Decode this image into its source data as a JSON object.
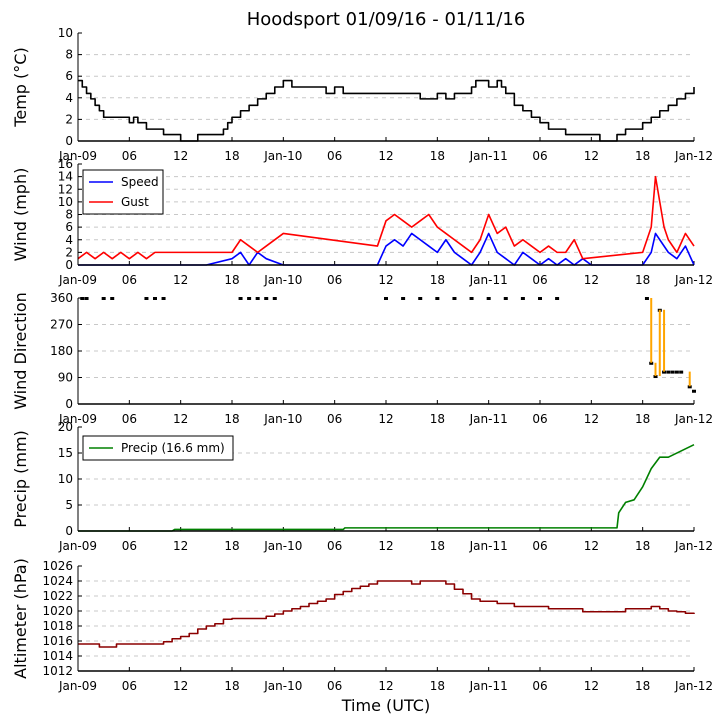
{
  "figure": {
    "title": "Hoodsport 01/09/16 - 01/11/16",
    "xlabel": "Time (UTC)",
    "x_tick_labels": [
      "Jan-09",
      "06",
      "12",
      "18",
      "Jan-10",
      "06",
      "12",
      "18",
      "Jan-11",
      "06",
      "12",
      "18",
      "Jan-12"
    ]
  },
  "chart_data": [
    {
      "type": "line",
      "name": "temperature",
      "ylabel": "Temp (°C)",
      "ylim": [
        0,
        10
      ],
      "yticks": [
        0,
        2,
        4,
        6,
        8,
        10
      ],
      "xlim": [
        0,
        72
      ],
      "grid": "horizontal dashed",
      "series": [
        {
          "name": "Temp",
          "color": "#000000",
          "step": true,
          "x": [
            0,
            0.5,
            1,
            1.5,
            2,
            2.5,
            3,
            4,
            5,
            6,
            6.5,
            7,
            8,
            9,
            10,
            11,
            12,
            13,
            14,
            15,
            16,
            17,
            17.5,
            18,
            19,
            20,
            21,
            22,
            23,
            24,
            25,
            26,
            27,
            28,
            29,
            30,
            31,
            32,
            33,
            34,
            35,
            36,
            37,
            38,
            39,
            40,
            41,
            42,
            43,
            44,
            45,
            46,
            46.5,
            47,
            48,
            49,
            49.5,
            50,
            51,
            52,
            53,
            54,
            55,
            56,
            57,
            58,
            59,
            60,
            61,
            62,
            63,
            64,
            65,
            66,
            67,
            68,
            69,
            70,
            71,
            72
          ],
          "values": [
            5.6,
            5.0,
            4.4,
            3.9,
            3.3,
            2.8,
            2.2,
            2.2,
            2.2,
            1.7,
            2.2,
            1.7,
            1.1,
            1.1,
            0.6,
            0.6,
            0.0,
            0.0,
            0.6,
            0.6,
            0.6,
            1.1,
            1.7,
            2.2,
            2.8,
            3.3,
            3.9,
            4.4,
            5.0,
            5.6,
            5.0,
            5.0,
            5.0,
            5.0,
            4.4,
            5.0,
            4.4,
            4.4,
            4.4,
            4.4,
            4.4,
            4.4,
            4.4,
            4.4,
            4.4,
            3.9,
            3.9,
            4.4,
            3.9,
            4.4,
            4.4,
            5.0,
            5.6,
            5.6,
            5.0,
            5.6,
            5.0,
            4.4,
            3.3,
            2.8,
            2.2,
            1.7,
            1.1,
            1.1,
            0.6,
            0.6,
            0.6,
            0.6,
            0.0,
            0.0,
            0.6,
            1.1,
            1.1,
            1.7,
            2.2,
            2.8,
            3.3,
            3.9,
            4.4,
            5.0
          ]
        }
      ]
    },
    {
      "type": "line",
      "name": "wind",
      "ylabel": "Wind (mph)",
      "ylim": [
        0,
        16
      ],
      "yticks": [
        0,
        2,
        4,
        6,
        8,
        10,
        12,
        14,
        16
      ],
      "xlim": [
        0,
        72
      ],
      "legend": "top-left",
      "series": [
        {
          "name": "Speed",
          "color": "#0000ff",
          "x": [
            0,
            3,
            6,
            9,
            12,
            15,
            18,
            19,
            20,
            21,
            22,
            24,
            27,
            30,
            33,
            35,
            36,
            37,
            38,
            39,
            40,
            41,
            42,
            43,
            44,
            45,
            46,
            47,
            48,
            49,
            50,
            51,
            52,
            53,
            54,
            55,
            56,
            57,
            58,
            59,
            60,
            63,
            66,
            67,
            67.5,
            68,
            69,
            70,
            71,
            72
          ],
          "values": [
            0,
            0,
            0,
            0,
            0,
            0,
            1,
            2,
            0,
            2,
            1,
            0,
            0,
            0,
            0,
            0,
            3,
            4,
            3,
            5,
            4,
            3,
            2,
            4,
            2,
            1,
            0,
            2,
            5,
            2,
            1,
            0,
            2,
            1,
            0,
            1,
            0,
            1,
            0,
            1,
            0,
            0,
            0,
            2,
            5,
            4,
            2,
            1,
            3,
            0
          ]
        },
        {
          "name": "Gust",
          "color": "#ff0000",
          "x": [
            0,
            1,
            2,
            3,
            4,
            5,
            6,
            7,
            8,
            9,
            18,
            19,
            20,
            21,
            22,
            24,
            35,
            35.5,
            36,
            37,
            38,
            39,
            40,
            41,
            42,
            43,
            44,
            45,
            46,
            47,
            48,
            49,
            50,
            51,
            52,
            53,
            54,
            55,
            56,
            57,
            58,
            59,
            66,
            66.5,
            67,
            67.5,
            68,
            68.5,
            69,
            70,
            71,
            72
          ],
          "values": [
            1,
            2,
            1,
            2,
            1,
            2,
            1,
            2,
            1,
            2,
            2,
            4,
            3,
            2,
            3,
            5,
            3,
            5,
            7,
            8,
            7,
            6,
            7,
            8,
            6,
            5,
            4,
            3,
            2,
            4,
            8,
            5,
            6,
            3,
            4,
            3,
            2,
            3,
            2,
            2,
            4,
            1,
            2,
            4,
            6,
            14,
            10,
            6,
            4,
            2,
            5,
            3
          ]
        }
      ]
    },
    {
      "type": "scatter",
      "name": "wind-direction",
      "ylabel": "Wind Direction",
      "ylim": [
        0,
        360
      ],
      "yticks": [
        0,
        90,
        180,
        270,
        360
      ],
      "xlim": [
        0,
        72
      ],
      "series": [
        {
          "name": "Direction",
          "color": "#ffa500",
          "x": [
            0.5,
            1,
            3,
            4,
            8,
            9,
            10,
            19,
            20,
            21,
            22,
            23,
            36,
            38,
            40,
            42,
            44,
            46,
            48,
            50,
            52,
            54,
            56,
            66.5,
            67,
            67.5,
            68,
            68.5,
            69,
            69.5,
            70,
            70.5,
            71.5,
            72
          ],
          "values": [
            360,
            360,
            360,
            360,
            360,
            360,
            360,
            360,
            360,
            360,
            360,
            360,
            360,
            360,
            360,
            360,
            360,
            360,
            360,
            360,
            360,
            360,
            360,
            360,
            140,
            95,
            320,
            110,
            110,
            110,
            110,
            110,
            60,
            45
          ]
        }
      ]
    },
    {
      "type": "line",
      "name": "precip",
      "ylabel": "Precip (mm)",
      "ylim": [
        0,
        20
      ],
      "yticks": [
        0,
        5,
        10,
        15,
        20
      ],
      "xlim": [
        0,
        72
      ],
      "legend": "top-left",
      "series": [
        {
          "name": "Precip (16.6 mm)",
          "color": "#008000",
          "x": [
            0,
            11,
            11.3,
            31,
            31.2,
            63,
            63.2,
            64,
            65,
            66,
            67,
            68,
            69,
            72
          ],
          "values": [
            0,
            0,
            0.3,
            0.3,
            0.6,
            0.6,
            3.5,
            5.5,
            6.0,
            8.5,
            12,
            14.2,
            14.2,
            16.6
          ]
        }
      ]
    },
    {
      "type": "line",
      "name": "altimeter",
      "ylabel": "Altimeter (hPa)",
      "ylim": [
        1012,
        1026
      ],
      "yticks": [
        1012,
        1014,
        1016,
        1018,
        1020,
        1022,
        1024,
        1026
      ],
      "xlim": [
        0,
        72
      ],
      "series": [
        {
          "name": "Altimeter",
          "color": "#8b0000",
          "step": true,
          "x": [
            0,
            2.5,
            4.5,
            8,
            10,
            11,
            12,
            13,
            14,
            15,
            16,
            17,
            18,
            22,
            23,
            24,
            25,
            26,
            27,
            28,
            29,
            30,
            31,
            32,
            33,
            34,
            35,
            36,
            39,
            40,
            42,
            43,
            44,
            45,
            46,
            47,
            48,
            49,
            50,
            51,
            52,
            54,
            55,
            57,
            59,
            60,
            63,
            64,
            66,
            67,
            68,
            69,
            70,
            71,
            72
          ],
          "values": [
            1015.6,
            1015.2,
            1015.6,
            1015.6,
            1015.9,
            1016.3,
            1016.6,
            1017.0,
            1017.6,
            1018.0,
            1018.3,
            1018.9,
            1019.0,
            1019.3,
            1019.6,
            1020.0,
            1020.3,
            1020.6,
            1021.0,
            1021.3,
            1021.6,
            1022.2,
            1022.6,
            1023.0,
            1023.3,
            1023.6,
            1024.0,
            1024.0,
            1023.6,
            1024.0,
            1024.0,
            1023.6,
            1022.9,
            1022.3,
            1021.6,
            1021.3,
            1021.3,
            1021.0,
            1021.0,
            1020.6,
            1020.6,
            1020.6,
            1020.3,
            1020.3,
            1019.9,
            1019.9,
            1019.9,
            1020.3,
            1020.3,
            1020.6,
            1020.3,
            1020.0,
            1019.9,
            1019.7,
            1019.6
          ]
        }
      ]
    }
  ]
}
